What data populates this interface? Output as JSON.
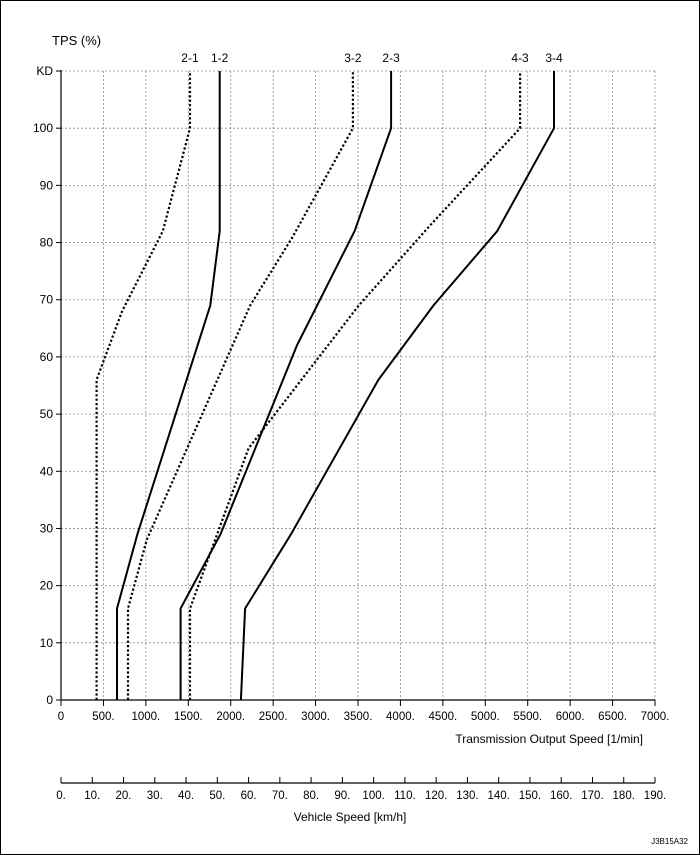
{
  "chart_data": {
    "type": "line",
    "ylabel": "TPS (%)",
    "xlabel": "Transmission Output Speed [1/min]",
    "x2label": "Vehicle Speed [km/h]",
    "watermark": "J3B15A32",
    "xlim": [
      0,
      7000
    ],
    "ylim": [
      0,
      110
    ],
    "x_ticks": [
      0,
      500,
      1000,
      1500,
      2000,
      2500,
      3000,
      3500,
      4000,
      4500,
      5000,
      5500,
      6000,
      6500,
      7000
    ],
    "x_tick_labels": [
      "0",
      "500.",
      "1000.",
      "1500.",
      "2000.",
      "2500.",
      "3000.",
      "3500.",
      "4000.",
      "4500.",
      "5000.",
      "5500.",
      "6000.",
      "6500.",
      "7000."
    ],
    "y_ticks": [
      0,
      10,
      20,
      30,
      40,
      50,
      60,
      70,
      80,
      90,
      100,
      110
    ],
    "y_tick_labels": [
      "0",
      "10",
      "20",
      "30",
      "40",
      "50",
      "60",
      "70",
      "80",
      "90",
      "100",
      "KD"
    ],
    "x2lim": [
      0,
      190
    ],
    "x2_ticks": [
      0,
      10,
      20,
      30,
      40,
      50,
      60,
      70,
      80,
      90,
      100,
      110,
      120,
      130,
      140,
      150,
      160,
      170,
      180,
      190
    ],
    "x2_tick_labels": [
      "0.",
      "10.",
      "20.",
      "30.",
      "40.",
      "50.",
      "60.",
      "70.",
      "80.",
      "90.",
      "100.",
      "110.",
      "120.",
      "130.",
      "140.",
      "150.",
      "160.",
      "170.",
      "180.",
      "190."
    ],
    "grid": true,
    "series": [
      {
        "name": "2-1",
        "style": "dotted",
        "points": [
          [
            420,
            0
          ],
          [
            420,
            56
          ],
          [
            720,
            68
          ],
          [
            1200,
            82
          ],
          [
            1520,
            100
          ],
          [
            1520,
            110
          ]
        ]
      },
      {
        "name": "1-2",
        "style": "solid",
        "points": [
          [
            660,
            0
          ],
          [
            660,
            16
          ],
          [
            900,
            29
          ],
          [
            1760,
            69
          ],
          [
            1870,
            82
          ],
          [
            1870,
            110
          ]
        ]
      },
      {
        "name": "3-2",
        "style": "dotted",
        "points": [
          [
            790,
            0
          ],
          [
            790,
            16
          ],
          [
            1010,
            28
          ],
          [
            2230,
            69
          ],
          [
            2730,
            81
          ],
          [
            3440,
            100
          ],
          [
            3440,
            110
          ]
        ]
      },
      {
        "name": "2-3",
        "style": "solid",
        "points": [
          [
            1410,
            0
          ],
          [
            1410,
            16
          ],
          [
            1880,
            29
          ],
          [
            2780,
            62
          ],
          [
            3460,
            82
          ],
          [
            3890,
            100
          ],
          [
            3890,
            110
          ]
        ]
      },
      {
        "name": "4-3",
        "style": "dotted",
        "points": [
          [
            1520,
            0
          ],
          [
            1520,
            16
          ],
          [
            2210,
            44
          ],
          [
            3510,
            69
          ],
          [
            4350,
            83
          ],
          [
            5410,
            100
          ],
          [
            5410,
            110
          ]
        ]
      },
      {
        "name": "3-4",
        "style": "solid",
        "points": [
          [
            2120,
            0
          ],
          [
            2170,
            16
          ],
          [
            2710,
            29
          ],
          [
            3740,
            56
          ],
          [
            4390,
            69
          ],
          [
            5140,
            82
          ],
          [
            5810,
            100
          ],
          [
            5810,
            110
          ]
        ]
      }
    ]
  }
}
